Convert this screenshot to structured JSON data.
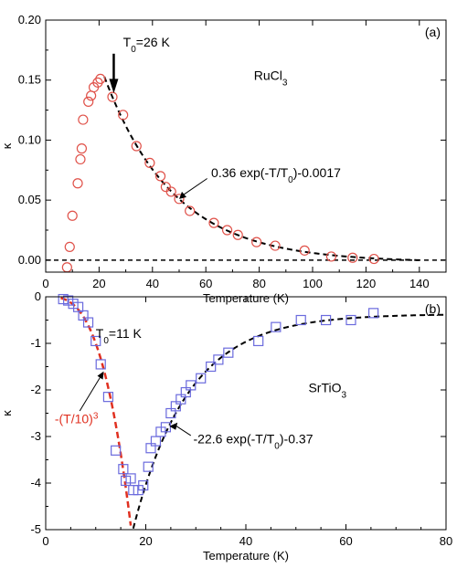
{
  "chart_data": [
    {
      "type": "scatter",
      "panel_label": "(a)",
      "material": "RuCl3",
      "xlabel": "Temperature (K)",
      "ylabel": "κ",
      "xlim": [
        0,
        150
      ],
      "ylim": [
        -0.01,
        0.2
      ],
      "xticks": [
        0,
        20,
        40,
        60,
        80,
        100,
        120,
        140
      ],
      "yticks": [
        0.0,
        0.05,
        0.1,
        0.15,
        0.2
      ],
      "ytick_labels": [
        "0.00",
        "0.05",
        "0.10",
        "0.15",
        "0.20"
      ],
      "t0_label": "T0=26 K",
      "t0_value": 26,
      "fit_label": "0.36 exp(-T/T0)-0.0017",
      "fit_params": {
        "a": 0.36,
        "T0": 26,
        "c": -0.0017
      },
      "zero_line": true,
      "marker": "circle",
      "marker_color": "#e0524a",
      "fit_color": "#000000",
      "series": [
        {
          "x": [
            8,
            9,
            10,
            12,
            13,
            13.5,
            14,
            16,
            17,
            18,
            19.5,
            20.5,
            25,
            29,
            34,
            39,
            43,
            45,
            47,
            50,
            54,
            63,
            68,
            72,
            79,
            86,
            97,
            107,
            115,
            123
          ],
          "y": [
            -0.006,
            0.011,
            0.037,
            0.064,
            0.084,
            0.093,
            0.117,
            0.132,
            0.137,
            0.144,
            0.148,
            0.151,
            0.136,
            0.121,
            0.095,
            0.081,
            0.07,
            0.061,
            0.057,
            0.051,
            0.041,
            0.031,
            0.025,
            0.021,
            0.015,
            0.012,
            0.008,
            0.003,
            0.002,
            0.001
          ]
        }
      ]
    },
    {
      "type": "scatter",
      "panel_label": "(b)",
      "material": "SrTiO3",
      "xlabel": "Temperature (K)",
      "ylabel": "κ",
      "xlim": [
        0,
        80
      ],
      "ylim": [
        -5,
        0
      ],
      "xticks": [
        0,
        20,
        40,
        60,
        80
      ],
      "yticks": [
        0,
        -1,
        -2,
        -3,
        -4,
        -5
      ],
      "ytick_labels": [
        "0",
        "-1",
        "-2",
        "-3",
        "-4",
        "-5"
      ],
      "t0_label": "T0=11 K",
      "t0_value": 11,
      "fit_label": "-22.6 exp(-T/T0)-0.37",
      "fit_params": {
        "a": -22.6,
        "T0": 11,
        "c": -0.37
      },
      "power_label": "-(T/10)3",
      "power_color": "#e03020",
      "marker": "square",
      "marker_color": "#6a6add",
      "fit_color": "#000000",
      "series": [
        {
          "x": [
            3.5,
            4.5,
            5.5,
            6.5,
            7.5,
            8.5,
            10,
            11,
            12.5,
            14,
            15.5,
            16,
            17,
            17.5,
            18.5,
            19.5,
            20.5,
            21,
            22,
            23,
            24,
            25,
            26,
            27,
            28,
            29,
            31,
            33,
            34.5,
            36.5,
            42.5,
            46,
            51,
            56,
            61,
            65.5
          ],
          "y": [
            -0.05,
            -0.08,
            -0.15,
            -0.22,
            -0.4,
            -0.55,
            -0.95,
            -1.45,
            -2.15,
            -3.3,
            -3.7,
            -3.95,
            -3.9,
            -4.15,
            -4.15,
            -4.05,
            -3.65,
            -3.25,
            -3.1,
            -2.9,
            -2.8,
            -2.5,
            -2.35,
            -2.2,
            -2.05,
            -1.9,
            -1.75,
            -1.5,
            -1.35,
            -1.2,
            -0.95,
            -0.65,
            -0.5,
            -0.5,
            -0.5,
            -0.35
          ]
        }
      ]
    }
  ]
}
